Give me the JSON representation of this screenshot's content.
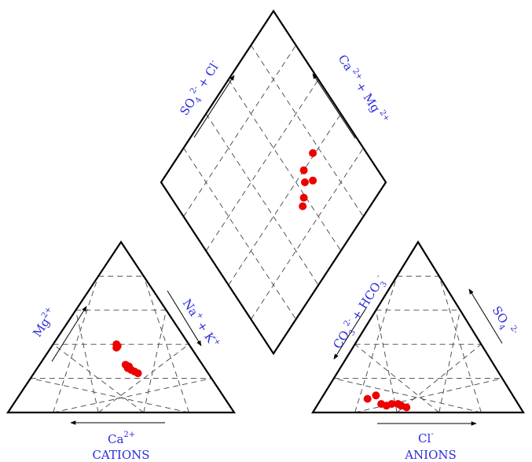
{
  "chart_data": {
    "type": "scatter",
    "subtype": "piper-trilinear",
    "grid_divisions": 5,
    "marker_color": "#ee0000",
    "label_color": "#2b2bdc",
    "cation_triangle": {
      "title": "CATIONS",
      "axes": {
        "left": {
          "base": "Mg",
          "sup": "2+"
        },
        "right": {
          "base": "Na",
          "sup1": "+",
          "mid": "+ K",
          "sup2": "+"
        },
        "bottom": {
          "base": "Ca",
          "sup": "2+"
        }
      },
      "points": [
        {
          "ca": 32,
          "mg": 40,
          "nak": 28
        },
        {
          "ca": 32,
          "mg": 39,
          "nak": 29
        },
        {
          "ca": 33,
          "mg": 38,
          "nak": 29
        },
        {
          "ca": 34,
          "mg": 28,
          "nak": 38
        },
        {
          "ca": 33,
          "mg": 27,
          "nak": 40
        },
        {
          "ca": 34,
          "mg": 26,
          "nak": 40
        },
        {
          "ca": 33,
          "mg": 25,
          "nak": 42
        },
        {
          "ca": 32,
          "mg": 24,
          "nak": 44
        },
        {
          "ca": 31,
          "mg": 23,
          "nak": 46
        }
      ]
    },
    "anion_triangle": {
      "title": "ANIONS",
      "axes": {
        "left": {
          "a": "CO",
          "a_sub": "3",
          "a_sup": "2-",
          "b": "+ HCO",
          "b_sub": "3",
          "b_sup": "-"
        },
        "right": {
          "base": "SO",
          "sub": "4",
          "sup": "2-"
        },
        "bottom": {
          "base": "Cl",
          "sup": "-"
        }
      },
      "points": [
        {
          "cl": 22,
          "so4": 8,
          "hco3": 70
        },
        {
          "cl": 25,
          "so4": 10,
          "hco3": 65
        },
        {
          "cl": 30,
          "so4": 5,
          "hco3": 65
        },
        {
          "cl": 33,
          "so4": 4,
          "hco3": 63
        },
        {
          "cl": 35,
          "so4": 5,
          "hco3": 60
        },
        {
          "cl": 38,
          "so4": 5,
          "hco3": 57
        },
        {
          "cl": 40,
          "so4": 4,
          "hco3": 56
        },
        {
          "cl": 43,
          "so4": 3,
          "hco3": 54
        }
      ]
    },
    "diamond": {
      "axes": {
        "upper_left": {
          "a": "SO",
          "a_sub": "4",
          "a_sup": "2-",
          "b": "+ Cl",
          "b_sup": "-"
        },
        "upper_right": {
          "a": "Ca",
          "a_sup": "2+",
          "b": "+ Mg",
          "b_sup": "2+"
        }
      },
      "points": [
        {
          "sulfate_chloride": 41,
          "calcium_magnesium": 76
        },
        {
          "sulfate_chloride": 33,
          "calcium_magnesium": 68
        },
        {
          "sulfate_chloride": 40,
          "calcium_magnesium": 67
        },
        {
          "sulfate_chloride": 32,
          "calcium_magnesium": 59
        },
        {
          "sulfate_chloride": 36,
          "calcium_magnesium": 64
        },
        {
          "sulfate_chloride": 30,
          "calcium_magnesium": 56
        }
      ]
    }
  }
}
